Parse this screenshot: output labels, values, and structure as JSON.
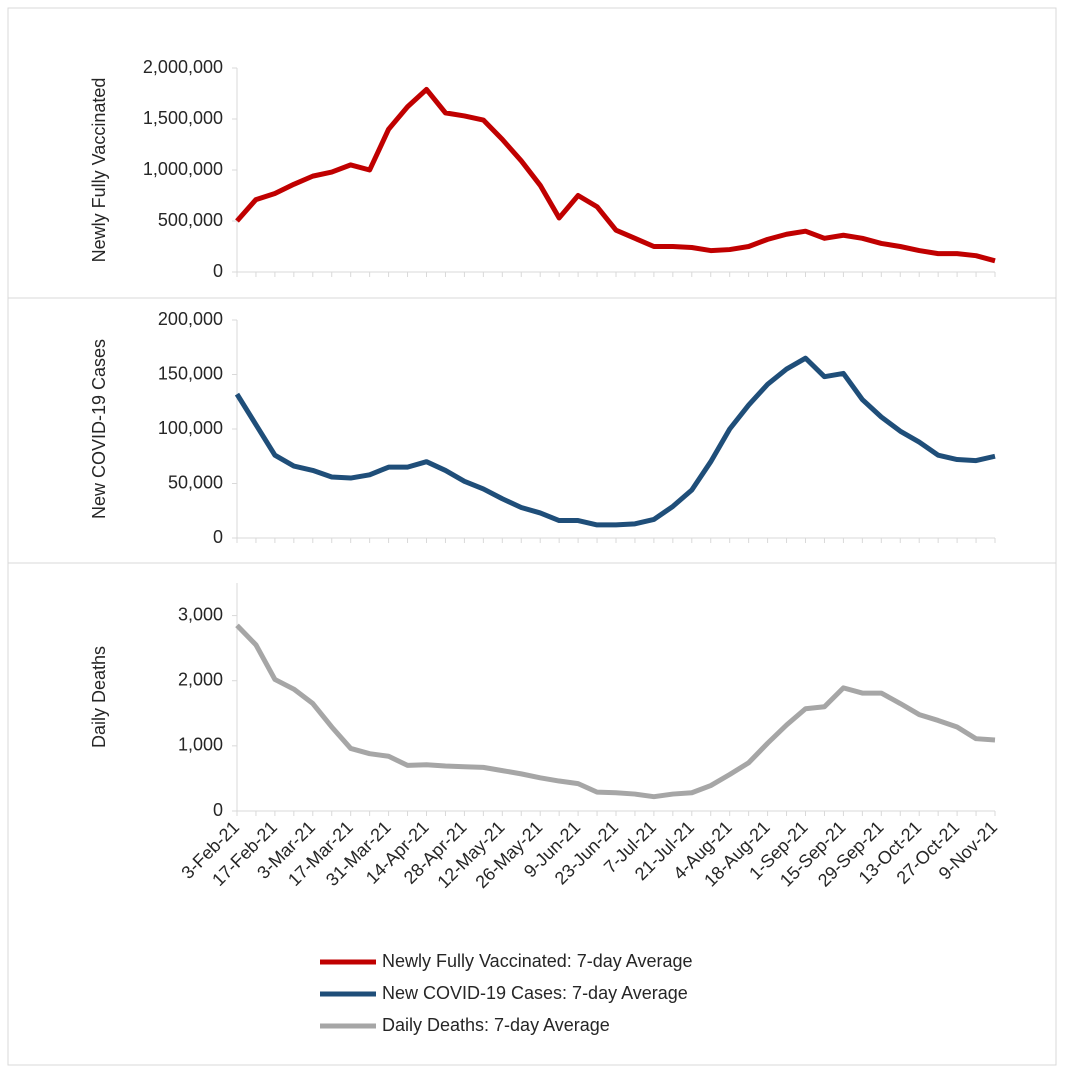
{
  "chart_data": [
    {
      "type": "line",
      "y_label": "Newly Fully Vaccinated",
      "ylim": [
        0,
        2000000
      ],
      "yticks": [
        0,
        {
          "value": 500000,
          "label": "500,000"
        },
        {
          "value": 1000000,
          "label": "1,000,000"
        },
        {
          "value": 1500000,
          "label": "1,500,000"
        },
        {
          "value": 2000000,
          "label": "2,000,000"
        }
      ],
      "series": [
        {
          "name": "Newly Fully Vaccinated: 7-day Average",
          "color": "#c00000",
          "values": [
            500000,
            710000,
            770000,
            860000,
            940000,
            980000,
            1050000,
            1000000,
            1400000,
            1620000,
            1790000,
            1560000,
            1530000,
            1490000,
            1300000,
            1090000,
            850000,
            530000,
            750000,
            640000,
            410000,
            330000,
            250000,
            250000,
            240000,
            210000,
            220000,
            250000,
            320000,
            370000,
            400000,
            330000,
            360000,
            330000,
            280000,
            250000,
            210000,
            180000,
            180000,
            160000,
            110000
          ]
        }
      ]
    },
    {
      "type": "line",
      "y_label": "New COVID-19 Cases",
      "ylim": [
        0,
        200000
      ],
      "yticks": [
        0,
        {
          "value": 50000,
          "label": "50,000"
        },
        {
          "value": 100000,
          "label": "100,000"
        },
        {
          "value": 150000,
          "label": "150,000"
        },
        {
          "value": 200000,
          "label": "200,000"
        }
      ],
      "series": [
        {
          "name": "New COVID-19 Cases: 7-day Average",
          "color": "#1f4e79",
          "values": [
            132000,
            104000,
            76000,
            66000,
            62000,
            56000,
            55000,
            58000,
            65000,
            65000,
            70000,
            62000,
            52000,
            45000,
            36000,
            28000,
            23000,
            16000,
            16000,
            12000,
            12000,
            13000,
            17000,
            29000,
            44000,
            70000,
            100000,
            122000,
            141000,
            155000,
            165000,
            148000,
            151000,
            127000,
            111000,
            98000,
            88000,
            76000,
            72000,
            71000,
            75000
          ]
        }
      ]
    },
    {
      "type": "line",
      "y_label": "Daily Deaths",
      "ylim": [
        0,
        3500
      ],
      "yticks": [
        0,
        {
          "value": 1000,
          "label": "1,000"
        },
        {
          "value": 2000,
          "label": "2,000"
        },
        {
          "value": 3000,
          "label": "3,000"
        }
      ],
      "categories": [
        "3-Feb-21",
        null,
        "17-Feb-21",
        null,
        "3-Mar-21",
        null,
        "17-Mar-21",
        null,
        "31-Mar-21",
        null,
        "14-Apr-21",
        null,
        "28-Apr-21",
        null,
        "12-May-21",
        null,
        "26-May-21",
        null,
        "9-Jun-21",
        null,
        "23-Jun-21",
        null,
        "7-Jul-21",
        null,
        "21-Jul-21",
        null,
        "4-Aug-21",
        null,
        "18-Aug-21",
        null,
        "1-Sep-21",
        null,
        "15-Sep-21",
        null,
        "29-Sep-21",
        null,
        "13-Oct-21",
        null,
        "27-Oct-21",
        null,
        "9-Nov-21"
      ],
      "series": [
        {
          "name": "Daily Deaths: 7-day Average",
          "color": "#a6a6a6",
          "values": [
            2850,
            2550,
            2020,
            1870,
            1650,
            1290,
            960,
            880,
            840,
            700,
            710,
            690,
            680,
            670,
            620,
            570,
            510,
            460,
            420,
            290,
            280,
            260,
            220,
            260,
            280,
            390,
            560,
            740,
            1040,
            1320,
            1570,
            1600,
            1890,
            1810,
            1810,
            1650,
            1480,
            1390,
            1290,
            1110,
            1090
          ]
        }
      ]
    }
  ]
}
